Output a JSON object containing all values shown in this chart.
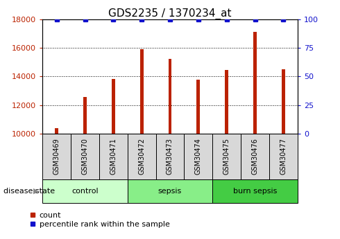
{
  "title": "GDS2235 / 1370234_at",
  "samples": [
    "GSM30469",
    "GSM30470",
    "GSM30471",
    "GSM30472",
    "GSM30473",
    "GSM30474",
    "GSM30475",
    "GSM30476",
    "GSM30477"
  ],
  "counts": [
    10400,
    12550,
    13850,
    15900,
    15250,
    13800,
    14450,
    17100,
    14500
  ],
  "percentile": [
    100,
    100,
    100,
    100,
    100,
    100,
    100,
    100,
    100
  ],
  "ylim_left": [
    10000,
    18000
  ],
  "ylim_right": [
    0,
    100
  ],
  "yticks_left": [
    10000,
    12000,
    14000,
    16000,
    18000
  ],
  "yticks_right": [
    0,
    25,
    50,
    75,
    100
  ],
  "bar_color": "#bb2200",
  "dot_color": "#1111cc",
  "groups": [
    {
      "label": "control",
      "indices": [
        0,
        1,
        2
      ],
      "color": "#ccffcc"
    },
    {
      "label": "sepsis",
      "indices": [
        3,
        4,
        5
      ],
      "color": "#88ee88"
    },
    {
      "label": "burn sepsis",
      "indices": [
        6,
        7,
        8
      ],
      "color": "#44cc44"
    }
  ],
  "disease_state_label": "disease state",
  "legend_count_label": "count",
  "legend_percentile_label": "percentile rank within the sample",
  "title_fontsize": 11,
  "tick_fontsize": 8,
  "sample_fontsize": 7,
  "group_fontsize": 8,
  "legend_fontsize": 8
}
